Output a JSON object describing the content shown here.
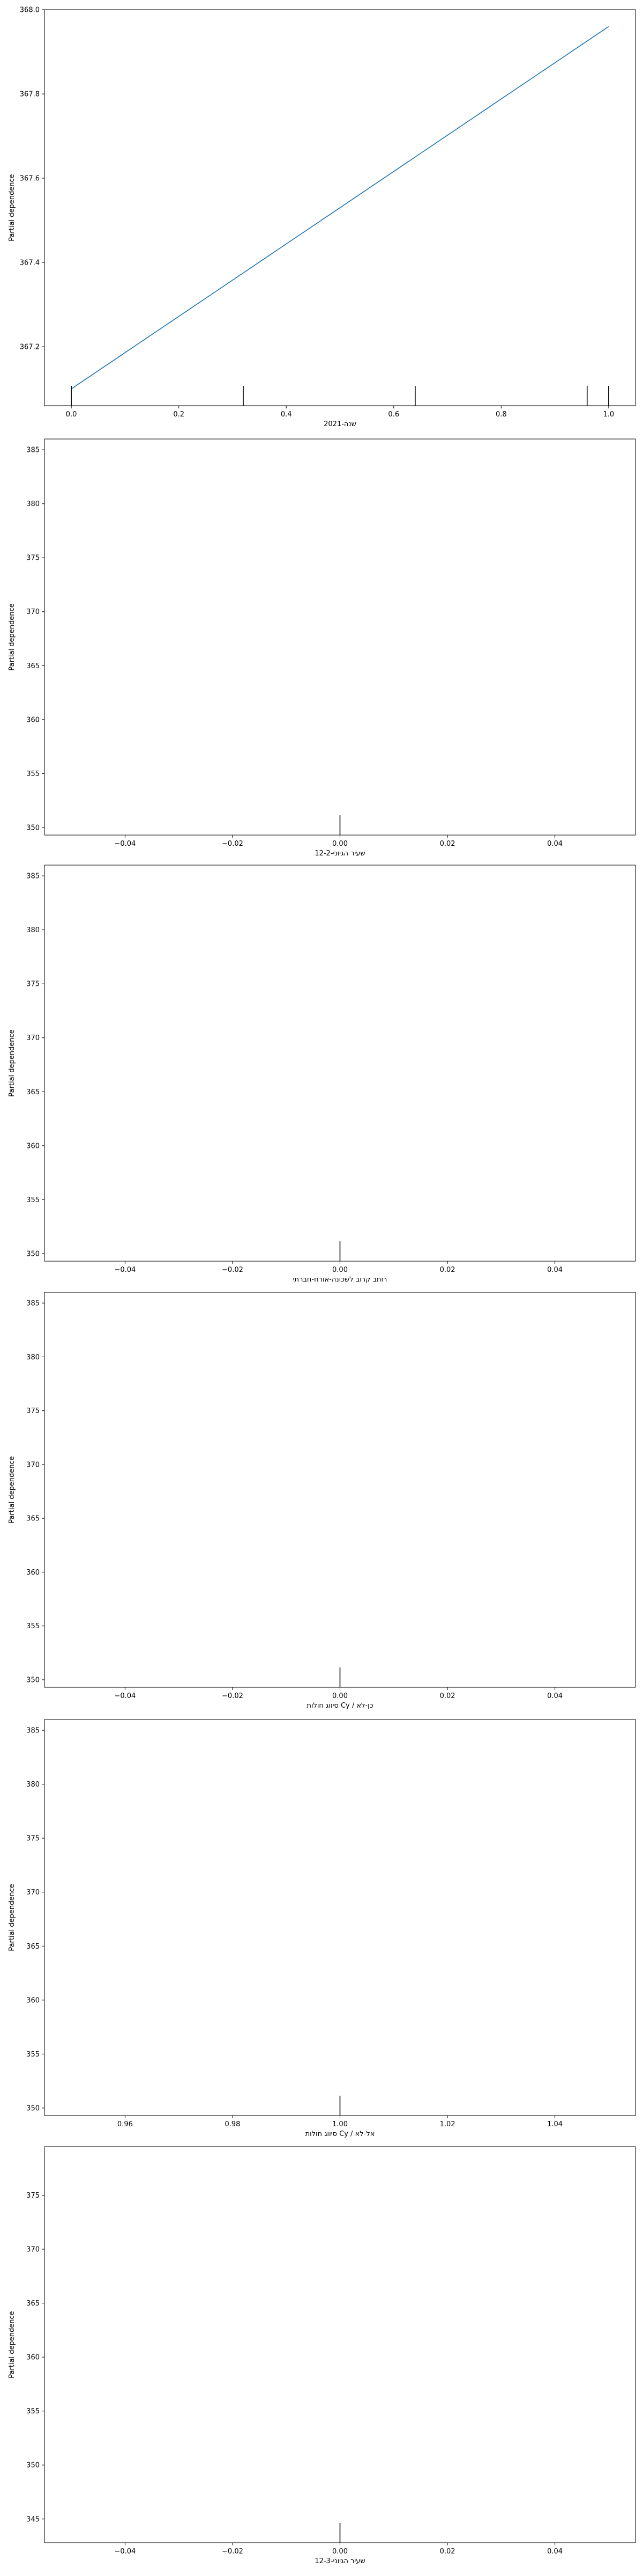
{
  "chart_data": [
    {
      "type": "line",
      "xlabel": "שנה-2021",
      "ylabel": "Partial dependence",
      "xlim": [
        -0.05,
        1.05
      ],
      "ylim": [
        367.06,
        368.0
      ],
      "xticks": [
        0.0,
        0.2,
        0.4,
        0.6,
        0.8,
        1.0
      ],
      "xtick_labels": [
        "0.0",
        "0.2",
        "0.4",
        "0.6",
        "0.8",
        "1.0"
      ],
      "yticks": [
        367.2,
        367.4,
        367.6,
        367.8,
        368.0
      ],
      "ytick_labels": [
        "367.2",
        "367.4",
        "367.6",
        "367.8",
        "368.0"
      ],
      "series": [
        {
          "x": [
            0.0,
            1.0
          ],
          "y": [
            367.1,
            367.96
          ]
        }
      ],
      "rug": [
        0.0,
        0.32,
        0.64,
        0.96,
        1.0
      ],
      "line_color": "#1f77b4",
      "grid": false
    },
    {
      "type": "line",
      "xlabel": "שעיר הגיוני-12-2",
      "ylabel": "Partial dependence",
      "xlim": [
        -0.055,
        0.055
      ],
      "ylim": [
        349.3,
        386.0
      ],
      "xticks": [
        -0.04,
        -0.02,
        0.0,
        0.02,
        0.04
      ],
      "xtick_labels": [
        "−0.04",
        "−0.02",
        "0.00",
        "0.02",
        "0.04"
      ],
      "yticks": [
        350,
        355,
        360,
        365,
        370,
        375,
        380,
        385
      ],
      "ytick_labels": [
        "350",
        "355",
        "360",
        "365",
        "370",
        "375",
        "380",
        "385"
      ],
      "series": [],
      "rug": [
        0.0
      ],
      "line_color": "#1f77b4",
      "grid": false
    },
    {
      "type": "line",
      "xlabel": "רוחב קרוב לשכונה-אורח-חברתי",
      "ylabel": "Partial dependence",
      "xlim": [
        -0.055,
        0.055
      ],
      "ylim": [
        349.3,
        386.0
      ],
      "xticks": [
        -0.04,
        -0.02,
        0.0,
        0.02,
        0.04
      ],
      "xtick_labels": [
        "−0.04",
        "−0.02",
        "0.00",
        "0.02",
        "0.04"
      ],
      "yticks": [
        350,
        355,
        360,
        365,
        370,
        375,
        380,
        385
      ],
      "ytick_labels": [
        "350",
        "355",
        "360",
        "365",
        "370",
        "375",
        "380",
        "385"
      ],
      "series": [],
      "rug": [
        0.0
      ],
      "line_color": "#1f77b4",
      "grid": false
    },
    {
      "type": "line",
      "xlabel": "סיווג חולות Cy / כן-לא",
      "ylabel": "Partial dependence",
      "xlim": [
        -0.055,
        0.055
      ],
      "ylim": [
        349.3,
        386.0
      ],
      "xticks": [
        -0.04,
        -0.02,
        0.0,
        0.02,
        0.04
      ],
      "xtick_labels": [
        "−0.04",
        "−0.02",
        "0.00",
        "0.02",
        "0.04"
      ],
      "yticks": [
        350,
        355,
        360,
        365,
        370,
        375,
        380,
        385
      ],
      "ytick_labels": [
        "350",
        "355",
        "360",
        "365",
        "370",
        "375",
        "380",
        "385"
      ],
      "series": [],
      "rug": [
        0.0
      ],
      "line_color": "#1f77b4",
      "grid": false
    },
    {
      "type": "line",
      "xlabel": "סיווג חולות Cy / אל-לא",
      "ylabel": "Partial dependence",
      "xlim": [
        0.945,
        1.055
      ],
      "ylim": [
        349.3,
        386.0
      ],
      "xticks": [
        0.96,
        0.98,
        1.0,
        1.02,
        1.04
      ],
      "xtick_labels": [
        "0.96",
        "0.98",
        "1.00",
        "1.02",
        "1.04"
      ],
      "yticks": [
        350,
        355,
        360,
        365,
        370,
        375,
        380,
        385
      ],
      "ytick_labels": [
        "350",
        "355",
        "360",
        "365",
        "370",
        "375",
        "380",
        "385"
      ],
      "series": [],
      "rug": [
        1.0
      ],
      "line_color": "#1f77b4",
      "grid": false
    },
    {
      "type": "line",
      "xlabel": "שעיר הגיוני-12-3",
      "ylabel": "Partial dependence",
      "xlim": [
        -0.055,
        0.055
      ],
      "ylim": [
        342.8,
        379.5
      ],
      "xticks": [
        -0.04,
        -0.02,
        0.0,
        0.02,
        0.04
      ],
      "xtick_labels": [
        "−0.04",
        "−0.02",
        "0.00",
        "0.02",
        "0.04"
      ],
      "yticks": [
        345,
        350,
        355,
        360,
        365,
        370,
        375
      ],
      "ytick_labels": [
        "345",
        "350",
        "355",
        "360",
        "365",
        "370",
        "375"
      ],
      "series": [],
      "rug": [
        0.0
      ],
      "line_color": "#1f77b4",
      "grid": false
    }
  ]
}
